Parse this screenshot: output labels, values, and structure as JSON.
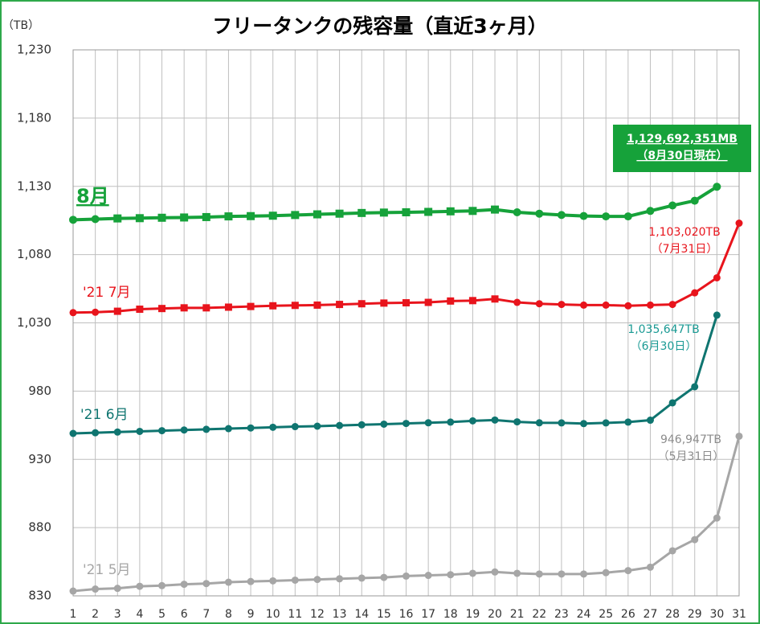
{
  "chart_data": {
    "type": "line",
    "title": "フリータンクの残容量（直近3ヶ月）",
    "y_unit_label": "（TB）",
    "categories": [
      "1",
      "2",
      "3",
      "4",
      "5",
      "6",
      "7",
      "8",
      "9",
      "10",
      "11",
      "12",
      "13",
      "14",
      "15",
      "16",
      "17",
      "18",
      "19",
      "20",
      "21",
      "22",
      "23",
      "24",
      "25",
      "26",
      "27",
      "28",
      "29",
      "30",
      "31"
    ],
    "ylim": [
      830,
      1230
    ],
    "yticks": [
      830,
      880,
      930,
      980,
      {
        "value": 1030,
        "label": "1,030"
      },
      {
        "value": 1080,
        "label": "1,080"
      },
      {
        "value": 1130,
        "label": "1,130"
      },
      {
        "value": 1180,
        "label": "1,180"
      },
      {
        "value": 1230,
        "label": "1,230"
      }
    ],
    "grid": true,
    "series": [
      {
        "name": "8月",
        "color": "#16a23a",
        "marker": "square",
        "values": [
          1105.5,
          1106,
          1106.5,
          1106.7,
          1107,
          1107.2,
          1107.5,
          1108,
          1108.2,
          1108.5,
          1109,
          1109.5,
          1110,
          1110.5,
          1110.8,
          1111,
          1111.3,
          1111.7,
          1112,
          1113,
          1111,
          1110,
          1109,
          1108.3,
          1108,
          1108,
          1112,
          1116,
          1119.5,
          1129.7,
          null
        ]
      },
      {
        "name": "'21 7月",
        "color": "#e8141c",
        "marker": "square",
        "values": [
          1037.5,
          1037.8,
          1038.5,
          1040,
          1040.5,
          1041,
          1041,
          1041.5,
          1042,
          1042.5,
          1042.8,
          1043,
          1043.5,
          1044,
          1044.5,
          1044.7,
          1045,
          1046,
          1046.3,
          1047.5,
          1045,
          1044,
          1043.5,
          1043,
          1043,
          1042.5,
          1043,
          1043.5,
          1052,
          1063,
          1103.02
        ]
      },
      {
        "name": "'21 6月",
        "color": "#0f7570",
        "marker": "circle",
        "values": [
          949,
          949.5,
          950,
          950.5,
          951,
          951.5,
          952,
          952.5,
          953,
          953.5,
          954,
          954.3,
          954.8,
          955.3,
          955.8,
          956.3,
          956.8,
          957.3,
          958.2,
          958.8,
          957.5,
          956.8,
          956.7,
          956.2,
          956.7,
          957.3,
          958.7,
          971.4,
          983.2,
          1035.647,
          null
        ]
      },
      {
        "name": "'21 5月",
        "color": "#a6a6a6",
        "marker": "circle",
        "values": [
          833.5,
          835,
          835.5,
          837,
          837.5,
          838.5,
          839,
          840,
          840.5,
          841,
          841.5,
          842,
          842.5,
          843,
          843.5,
          844.5,
          845,
          845.5,
          846.5,
          847.5,
          846.5,
          846,
          846,
          846,
          847,
          848.5,
          851,
          863,
          871.2,
          887,
          946.947
        ]
      }
    ],
    "annotations": [
      {
        "lines": [
          "1,129,692,351MB",
          "（8月30日現在）"
        ],
        "color": "#16a23a",
        "boxed": true
      },
      {
        "lines": [
          "1,103,020TB",
          "（7月31日）"
        ],
        "color": "#e8141c"
      },
      {
        "lines": [
          "1,035,647TB",
          "（6月30日）"
        ],
        "color": "#1a9a94"
      },
      {
        "lines": [
          "946,947TB",
          "（5月31日）"
        ],
        "color": "#8c8c8c"
      }
    ]
  }
}
